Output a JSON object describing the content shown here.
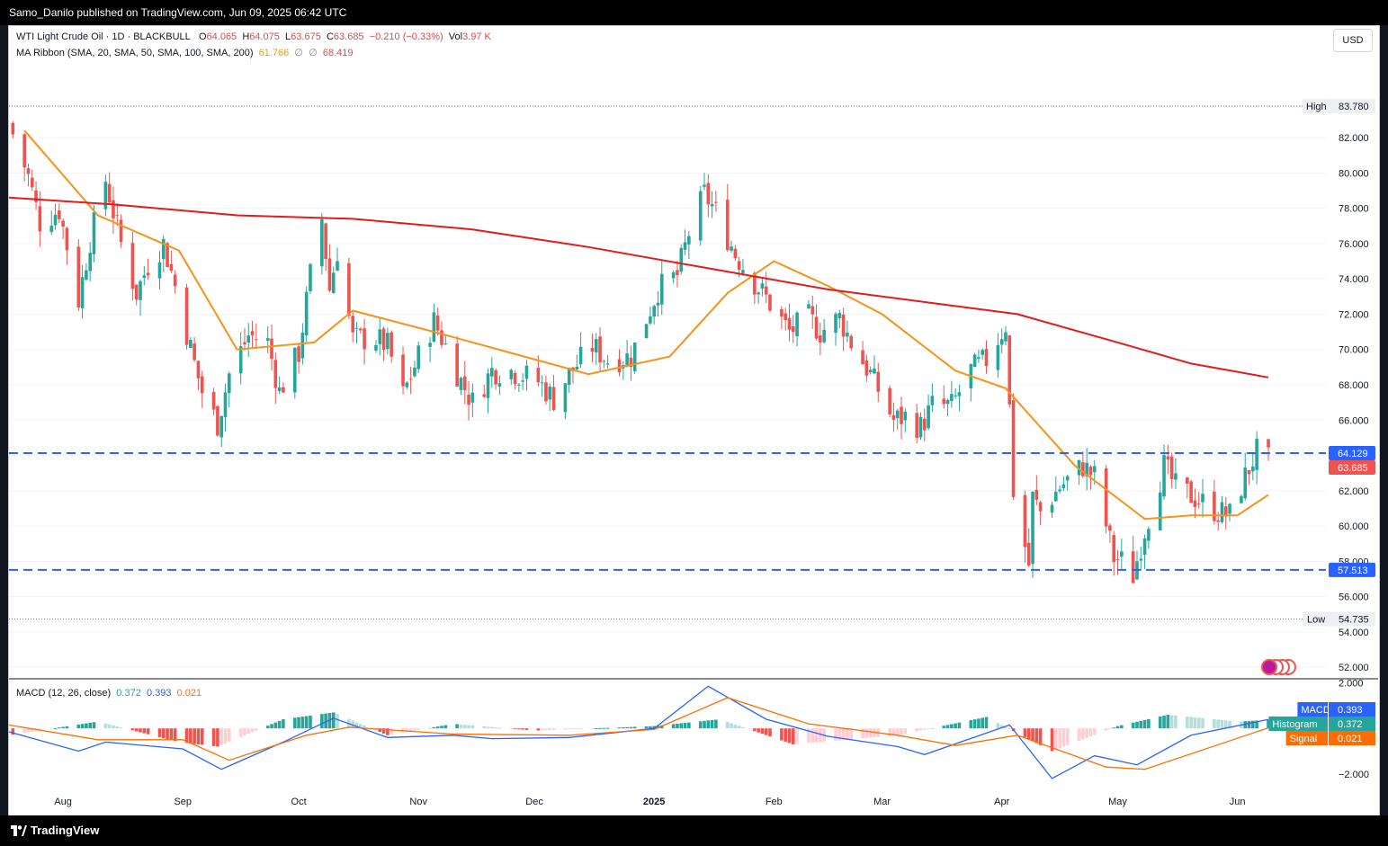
{
  "header": {
    "publisher_line": "Samo_Danilo published on TradingView.com, Jun 09, 2025 06:42 UTC"
  },
  "footer": {
    "brand": "TradingView"
  },
  "currency_button": "USD",
  "legend": {
    "symbol": "WTI Light Crude Oil · 1D · BLACKBULL",
    "o_label": "O",
    "o_value": "64.065",
    "h_label": "H",
    "h_value": "64.075",
    "l_label": "L",
    "l_value": "63.675",
    "c_label": "C",
    "c_value": "63.685",
    "change": "−0.210 (−0.33%)",
    "vol_label": "Vol",
    "vol_value": "3.97 K",
    "ma_label": "MA Ribbon (SMA, 20, SMA, 50, SMA, 100, SMA, 200)",
    "ma_20_value": "61.766",
    "ma_null_1": "∅",
    "ma_null_2": "∅",
    "ma_200_value": "68.419",
    "macd_label": "MACD (12, 26, close)",
    "macd_hist_value": "0.372",
    "macd_line_value": "0.393",
    "macd_signal_value": "0.021"
  },
  "price_tags": {
    "high_label": "High",
    "high_value": "83.780",
    "low_label": "Low",
    "low_value": "54.735",
    "resistance": "64.129",
    "last": "63.685",
    "support": "57.513"
  },
  "macd_tags": [
    {
      "label": "MACD",
      "value": "0.393",
      "color": "#2962ff"
    },
    {
      "label": "Histogram",
      "value": "0.372",
      "color": "#26a69a"
    },
    {
      "label": "Signal",
      "value": "0.021",
      "color": "#ff6d00"
    }
  ],
  "colors": {
    "up": "#26a69a",
    "down": "#ef5350",
    "ma20": "#f7931a",
    "ma200": "#e51a1a",
    "level": "#2962ff",
    "macd": "#2962ff",
    "signal": "#ff6d00"
  },
  "chart_data": [
    {
      "type": "candlestick",
      "title": "WTI Light Crude Oil · 1D · BLACKBULL",
      "y_ticks": [
        "52.000",
        "54.000",
        "56.000",
        "58.000",
        "60.000",
        "62.000",
        "64.000",
        "66.000",
        "68.000",
        "70.000",
        "72.000",
        "74.000",
        "76.000",
        "78.000",
        "80.000",
        "82.000"
      ],
      "ylim": [
        51.5,
        84.6
      ],
      "x_ticks": [
        "Aug",
        "Sep",
        "Oct",
        "Nov",
        "Dec",
        "2025",
        "Feb",
        "Mar",
        "Apr",
        "May",
        "Jun"
      ],
      "x_range": [
        "2024-07-18",
        "2025-06-09"
      ],
      "close_path": [
        [
          "2024-07-18",
          82.8
        ],
        [
          "2024-07-23",
          79.8
        ],
        [
          "2024-07-26",
          77.2
        ],
        [
          "2024-07-31",
          77.9
        ],
        [
          "2024-08-05",
          72.8
        ],
        [
          "2024-08-08",
          76.2
        ],
        [
          "2024-08-12",
          79.6
        ],
        [
          "2024-08-16",
          76.0
        ],
        [
          "2024-08-20",
          73.2
        ],
        [
          "2024-08-23",
          74.8
        ],
        [
          "2024-08-27",
          76.0
        ],
        [
          "2024-08-30",
          73.6
        ],
        [
          "2024-09-04",
          69.2
        ],
        [
          "2024-09-06",
          67.6
        ],
        [
          "2024-09-10",
          65.8
        ],
        [
          "2024-09-13",
          68.6
        ],
        [
          "2024-09-18",
          70.8
        ],
        [
          "2024-09-23",
          70.4
        ],
        [
          "2024-09-26",
          67.6
        ],
        [
          "2024-10-01",
          69.8
        ],
        [
          "2024-10-04",
          74.2
        ],
        [
          "2024-10-07",
          77.4
        ],
        [
          "2024-10-09",
          73.4
        ],
        [
          "2024-10-11",
          75.6
        ],
        [
          "2024-10-15",
          70.6
        ],
        [
          "2024-10-21",
          70.6
        ],
        [
          "2024-10-24",
          70.2
        ],
        [
          "2024-10-28",
          67.4
        ],
        [
          "2024-11-01",
          69.6
        ],
        [
          "2024-11-05",
          71.6
        ],
        [
          "2024-11-08",
          70.2
        ],
        [
          "2024-11-12",
          68.2
        ],
        [
          "2024-11-15",
          67.0
        ],
        [
          "2024-11-20",
          68.8
        ],
        [
          "2024-11-25",
          68.8
        ],
        [
          "2024-12-02",
          68.2
        ],
        [
          "2024-12-06",
          67.2
        ],
        [
          "2024-12-10",
          68.6
        ],
        [
          "2024-12-16",
          70.2
        ],
        [
          "2024-12-20",
          69.4
        ],
        [
          "2024-12-26",
          69.6
        ],
        [
          "2025-01-02",
          73.4
        ],
        [
          "2025-01-07",
          74.2
        ],
        [
          "2025-01-10",
          76.6
        ],
        [
          "2025-01-14",
          78.8
        ],
        [
          "2025-01-17",
          77.8
        ],
        [
          "2025-01-22",
          75.4
        ],
        [
          "2025-01-27",
          73.8
        ],
        [
          "2025-01-31",
          72.6
        ],
        [
          "2025-02-05",
          71.0
        ],
        [
          "2025-02-10",
          71.8
        ],
        [
          "2025-02-13",
          71.0
        ],
        [
          "2025-02-18",
          71.8
        ],
        [
          "2025-02-21",
          70.4
        ],
        [
          "2025-02-26",
          68.6
        ],
        [
          "2025-03-04",
          66.0
        ],
        [
          "2025-03-07",
          66.2
        ],
        [
          "2025-03-11",
          65.6
        ],
        [
          "2025-03-14",
          66.8
        ],
        [
          "2025-03-19",
          66.8
        ],
        [
          "2025-03-24",
          68.8
        ],
        [
          "2025-03-28",
          69.4
        ],
        [
          "2025-04-02",
          71.4
        ],
        [
          "2025-04-04",
          62.0
        ],
        [
          "2025-04-08",
          57.8
        ],
        [
          "2025-04-09",
          61.6
        ],
        [
          "2025-04-11",
          60.8
        ],
        [
          "2025-04-16",
          62.2
        ],
        [
          "2025-04-22",
          63.4
        ],
        [
          "2025-04-25",
          62.8
        ],
        [
          "2025-04-30",
          58.2
        ],
        [
          "2025-05-02",
          58.0
        ],
        [
          "2025-05-05",
          57.2
        ],
        [
          "2025-05-08",
          59.8
        ],
        [
          "2025-05-13",
          63.4
        ],
        [
          "2025-05-16",
          62.2
        ],
        [
          "2025-05-21",
          61.6
        ],
        [
          "2025-05-27",
          60.8
        ],
        [
          "2025-05-30",
          60.6
        ],
        [
          "2025-06-03",
          62.8
        ],
        [
          "2025-06-06",
          64.2
        ],
        [
          "2025-06-09",
          63.685
        ]
      ],
      "series": [
        {
          "name": "SMA 20",
          "points": [
            [
              "2024-07-22",
              82.4
            ],
            [
              "2024-08-10",
              77.6
            ],
            [
              "2024-08-31",
              75.6
            ],
            [
              "2024-09-15",
              70.0
            ],
            [
              "2024-10-05",
              70.4
            ],
            [
              "2024-10-15",
              72.2
            ],
            [
              "2024-11-05",
              71.0
            ],
            [
              "2024-11-25",
              69.8
            ],
            [
              "2024-12-15",
              68.6
            ],
            [
              "2025-01-05",
              69.6
            ],
            [
              "2025-01-20",
              73.2
            ],
            [
              "2025-02-01",
              75.0
            ],
            [
              "2025-02-15",
              73.6
            ],
            [
              "2025-03-01",
              72.0
            ],
            [
              "2025-03-20",
              68.8
            ],
            [
              "2025-04-02",
              67.8
            ],
            [
              "2025-04-20",
              63.4
            ],
            [
              "2025-05-08",
              60.4
            ],
            [
              "2025-05-20",
              60.6
            ],
            [
              "2025-06-01",
              60.6
            ],
            [
              "2025-06-09",
              61.766
            ]
          ]
        },
        {
          "name": "SMA 200",
          "points": [
            [
              "2024-07-18",
              78.6
            ],
            [
              "2024-08-15",
              78.2
            ],
            [
              "2024-09-15",
              77.6
            ],
            [
              "2024-10-15",
              77.4
            ],
            [
              "2024-11-15",
              76.8
            ],
            [
              "2024-12-15",
              75.8
            ],
            [
              "2025-01-15",
              74.6
            ],
            [
              "2025-02-15",
              73.4
            ],
            [
              "2025-03-15",
              72.6
            ],
            [
              "2025-04-05",
              72.0
            ],
            [
              "2025-05-01",
              70.4
            ],
            [
              "2025-05-20",
              69.2
            ],
            [
              "2025-06-09",
              68.419
            ]
          ]
        }
      ],
      "levels": [
        {
          "name": "Resistance",
          "value": 64.129,
          "style": "dashed"
        },
        {
          "name": "Support",
          "value": 57.513,
          "style": "dashed"
        },
        {
          "name": "High",
          "value": 83.78,
          "style": "dotted"
        },
        {
          "name": "Low",
          "value": 54.735,
          "style": "dotted"
        }
      ]
    },
    {
      "type": "histogram+line",
      "title": "MACD (12, 26, close)",
      "y_ticks": [
        "2.000",
        "−2.000"
      ],
      "ylim": [
        -2.6,
        2.1
      ],
      "macd_path": [
        [
          "2024-07-18",
          -0.15
        ],
        [
          "2024-08-05",
          -1.0
        ],
        [
          "2024-08-12",
          -0.6
        ],
        [
          "2024-09-01",
          -0.9
        ],
        [
          "2024-09-11",
          -1.8
        ],
        [
          "2024-09-27",
          -0.6
        ],
        [
          "2024-10-10",
          0.45
        ],
        [
          "2024-10-24",
          -0.4
        ],
        [
          "2024-11-10",
          -0.3
        ],
        [
          "2024-11-20",
          -0.45
        ],
        [
          "2024-12-10",
          -0.4
        ],
        [
          "2025-01-01",
          0.0
        ],
        [
          "2025-01-15",
          1.85
        ],
        [
          "2025-01-30",
          0.4
        ],
        [
          "2025-02-15",
          -0.35
        ],
        [
          "2025-03-05",
          -0.8
        ],
        [
          "2025-03-12",
          -1.15
        ],
        [
          "2025-04-03",
          0.15
        ],
        [
          "2025-04-14",
          -2.2
        ],
        [
          "2025-04-25",
          -1.2
        ],
        [
          "2025-05-06",
          -1.6
        ],
        [
          "2025-05-20",
          -0.3
        ],
        [
          "2025-06-09",
          0.393
        ]
      ],
      "signal_path": [
        [
          "2024-07-18",
          0.15
        ],
        [
          "2024-08-10",
          -0.5
        ],
        [
          "2024-09-01",
          -0.5
        ],
        [
          "2024-09-13",
          -1.4
        ],
        [
          "2024-10-03",
          -0.3
        ],
        [
          "2024-10-14",
          0.05
        ],
        [
          "2024-11-10",
          -0.25
        ],
        [
          "2024-12-10",
          -0.3
        ],
        [
          "2025-01-01",
          -0.05
        ],
        [
          "2025-01-20",
          1.35
        ],
        [
          "2025-02-10",
          0.2
        ],
        [
          "2025-03-05",
          -0.3
        ],
        [
          "2025-03-20",
          -0.75
        ],
        [
          "2025-04-05",
          -0.3
        ],
        [
          "2025-04-28",
          -1.7
        ],
        [
          "2025-05-08",
          -1.8
        ],
        [
          "2025-06-09",
          0.021
        ]
      ],
      "histogram_path": [
        [
          "2024-07-18",
          -0.3
        ],
        [
          "2024-08-10",
          0.3
        ],
        [
          "2024-08-31",
          -0.6
        ],
        [
          "2024-09-10",
          -0.8
        ],
        [
          "2024-09-27",
          0.4
        ],
        [
          "2024-10-10",
          0.7
        ],
        [
          "2024-10-24",
          -0.3
        ],
        [
          "2024-11-10",
          0.2
        ],
        [
          "2024-12-01",
          -0.1
        ],
        [
          "2025-01-01",
          0.1
        ],
        [
          "2025-01-18",
          0.4
        ],
        [
          "2025-02-06",
          -0.7
        ],
        [
          "2025-03-05",
          -0.3
        ],
        [
          "2025-03-28",
          0.5
        ],
        [
          "2025-04-14",
          -1.0
        ],
        [
          "2025-05-01",
          0.1
        ],
        [
          "2025-05-14",
          0.6
        ],
        [
          "2025-06-01",
          0.3
        ],
        [
          "2025-06-09",
          0.372
        ]
      ]
    }
  ]
}
